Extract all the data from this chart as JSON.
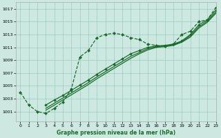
{
  "xlabel": "Graphe pression niveau de la mer (hPa)",
  "background_color": "#cce8e0",
  "grid_color": "#99ccc2",
  "line_color": "#1a6b2a",
  "xlim": [
    -0.5,
    23
  ],
  "ylim": [
    999.5,
    1018.0
  ],
  "yticks": [
    1001,
    1003,
    1005,
    1007,
    1009,
    1011,
    1013,
    1015,
    1017
  ],
  "xticks": [
    0,
    1,
    2,
    3,
    4,
    5,
    6,
    7,
    8,
    9,
    10,
    11,
    12,
    13,
    14,
    15,
    16,
    17,
    18,
    19,
    20,
    21,
    22,
    23
  ],
  "series": [
    {
      "x": [
        0,
        1,
        2,
        3,
        4,
        5,
        6,
        7,
        8,
        9,
        10,
        11,
        12,
        13,
        14,
        15,
        16,
        17,
        18,
        19,
        20,
        21,
        22,
        23
      ],
      "y": [
        1004.0,
        1002.0,
        1001.0,
        1000.7,
        1001.5,
        1002.5,
        1004.5,
        1009.5,
        1010.5,
        1012.5,
        1013.0,
        1013.2,
        1013.0,
        1012.5,
        1012.2,
        1011.5,
        1011.3,
        1011.2,
        1011.5,
        1013.0,
        1013.5,
        1015.0,
        1015.3,
        1017.2
      ],
      "linestyle": "--",
      "linewidth": 0.9,
      "marker": "D",
      "markersize": 2.0
    },
    {
      "x": [
        3,
        4,
        5,
        6,
        7,
        8,
        9,
        10,
        11,
        12,
        13,
        14,
        15,
        16,
        17,
        18,
        19,
        20,
        21,
        22,
        23
      ],
      "y": [
        1002.0,
        1002.8,
        1003.5,
        1004.3,
        1005.1,
        1005.9,
        1006.8,
        1007.6,
        1008.4,
        1009.2,
        1010.0,
        1010.5,
        1011.0,
        1011.2,
        1011.3,
        1011.5,
        1012.0,
        1013.0,
        1014.5,
        1015.3,
        1016.8
      ],
      "linestyle": "-",
      "linewidth": 0.9,
      "marker": "D",
      "markersize": 1.8
    },
    {
      "x": [
        3,
        4,
        5,
        6,
        7,
        8,
        9,
        10,
        11,
        12,
        13,
        14,
        15,
        16,
        17,
        18,
        19,
        20,
        21,
        22,
        23
      ],
      "y": [
        1001.5,
        1002.3,
        1003.1,
        1003.9,
        1004.7,
        1005.5,
        1006.4,
        1007.2,
        1008.0,
        1008.8,
        1009.6,
        1010.2,
        1010.8,
        1011.1,
        1011.2,
        1011.4,
        1011.9,
        1012.8,
        1014.2,
        1015.1,
        1016.5
      ],
      "linestyle": "-",
      "linewidth": 0.9,
      "marker": null,
      "markersize": 0
    },
    {
      "x": [
        3,
        4,
        5,
        6,
        7,
        8,
        9,
        10,
        11,
        12,
        13,
        14,
        15,
        16,
        17,
        18,
        19,
        20,
        21,
        22,
        23
      ],
      "y": [
        1001.2,
        1002.0,
        1002.8,
        1003.6,
        1004.4,
        1005.2,
        1006.1,
        1006.9,
        1007.7,
        1008.5,
        1009.3,
        1010.0,
        1010.6,
        1011.0,
        1011.1,
        1011.3,
        1011.8,
        1012.6,
        1014.0,
        1014.9,
        1016.3
      ],
      "linestyle": "-",
      "linewidth": 0.9,
      "marker": null,
      "markersize": 0
    }
  ]
}
